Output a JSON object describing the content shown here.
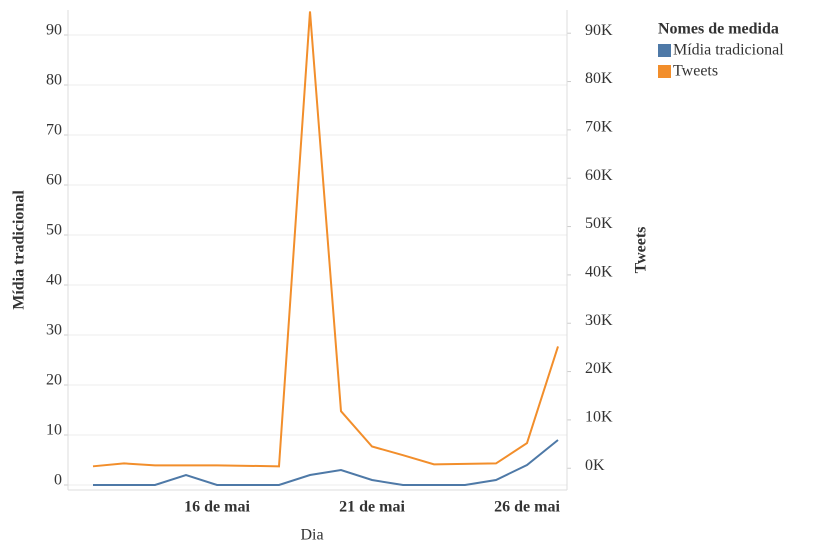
{
  "chart_data": {
    "type": "line",
    "x_label": "Dia",
    "y_label": "Mídia tradicional",
    "y2_label": "Tweets",
    "legend_title": "Nomes de medida",
    "legend": "right",
    "grid": true,
    "categories": [
      null,
      null,
      null,
      null,
      "16 de mai",
      null,
      null,
      null,
      null,
      "21 de mai",
      null,
      null,
      null,
      null,
      "26 de mai",
      null
    ],
    "series": [
      {
        "name": "Mídia tradicional",
        "color": "#4e79a7",
        "values": [
          0,
          0,
          0,
          2,
          0,
          0,
          0,
          2,
          3,
          1,
          0,
          0,
          0,
          1,
          4,
          9
        ]
      },
      {
        "name": "Tweets",
        "color": "#f28e2b",
        "axis": "y2",
        "values": [
          400,
          1000,
          600,
          600,
          600,
          500,
          400,
          94500,
          11800,
          4500,
          2700,
          800,
          900,
          1000,
          5200,
          25200
        ]
      }
    ],
    "ylim": [
      -1,
      95
    ],
    "yticks": [
      0,
      10,
      20,
      30,
      40,
      50,
      60,
      70,
      80,
      90
    ],
    "y2lim": [
      -4500,
      94800
    ],
    "y2ticks": [
      {
        "value": 0,
        "label": "0K"
      },
      {
        "value": 10000,
        "label": "10K"
      },
      {
        "value": 20000,
        "label": "20K"
      },
      {
        "value": 30000,
        "label": "30K"
      },
      {
        "value": 40000,
        "label": "40K"
      },
      {
        "value": 50000,
        "label": "50K"
      },
      {
        "value": 60000,
        "label": "60K"
      },
      {
        "value": 70000,
        "label": "70K"
      },
      {
        "value": 80000,
        "label": "80K"
      },
      {
        "value": 90000,
        "label": "90K"
      }
    ]
  }
}
